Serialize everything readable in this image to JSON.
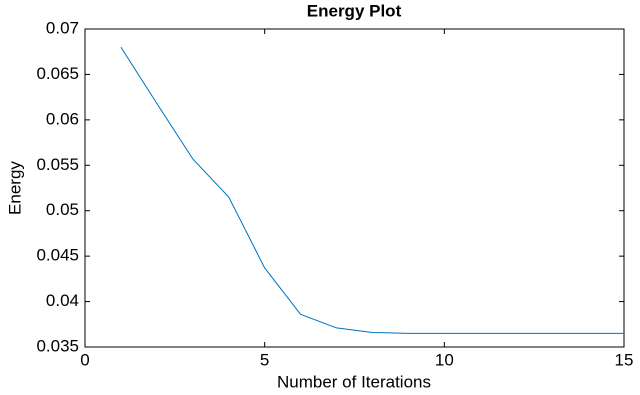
{
  "chart_data": {
    "type": "line",
    "title": "Energy Plot",
    "x_label": "Number of Iterations",
    "y_label": "Energy",
    "x": [
      1,
      2,
      3,
      4,
      5,
      6,
      7,
      8,
      9,
      10,
      11,
      12,
      13,
      14,
      15
    ],
    "series": [
      {
        "name": "Energy",
        "color": "#0072bd",
        "values": [
          0.068,
          0.0618,
          0.0557,
          0.0515,
          0.0437,
          0.0386,
          0.0371,
          0.0366,
          0.0365,
          0.0365,
          0.0365,
          0.0365,
          0.0365,
          0.0365,
          0.0365
        ]
      }
    ],
    "xlim": [
      0,
      15
    ],
    "xticks": [
      0,
      5,
      10,
      15
    ],
    "ylim": [
      0.035,
      0.07
    ],
    "yticks": [
      0.035,
      0.04,
      0.045,
      0.05,
      0.055,
      0.06,
      0.065,
      0.07
    ]
  }
}
